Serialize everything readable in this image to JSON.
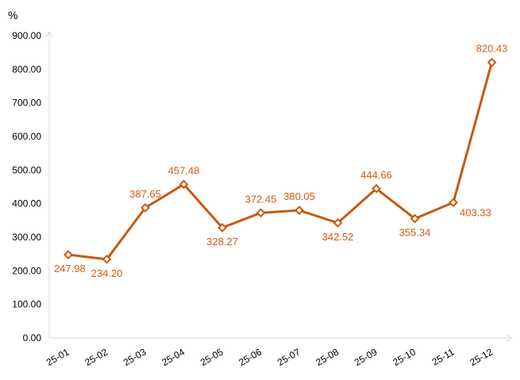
{
  "chart_data": {
    "type": "line",
    "title": "",
    "xlabel": "",
    "ylabel": "%",
    "ylim": [
      0,
      900
    ],
    "yticks": [
      "0.00",
      "100.00",
      "200.00",
      "300.00",
      "400.00",
      "500.00",
      "600.00",
      "700.00",
      "800.00",
      "900.00"
    ],
    "categories": [
      "25-01",
      "25-02",
      "25-03",
      "25-04",
      "25-05",
      "25-06",
      "25-07",
      "25-08",
      "25-09",
      "25-10",
      "25-11",
      "25-12"
    ],
    "series": [
      {
        "values": [
          247.98,
          234.2,
          387.65,
          457.48,
          328.27,
          372.45,
          380.05,
          342.52,
          444.66,
          355.34,
          403.33,
          820.43
        ],
        "labels": [
          "247.98",
          "234.20",
          "387.65",
          "457.48",
          "328.27",
          "372.45",
          "380.05",
          "342.52",
          "444.66",
          "355.34",
          "403.33",
          "820.43"
        ],
        "color": "#c55a11"
      }
    ],
    "grid": false,
    "legend": "none"
  }
}
